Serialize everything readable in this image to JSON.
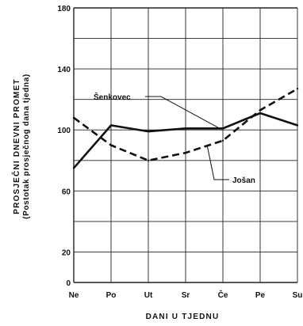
{
  "chart_data": {
    "type": "line",
    "xlabel": "DANI U TJEDNU",
    "ylabel": "PROSJEČNI DNEVNI PROMET",
    "ylabel2": "(Postotak prosječnog dana tjedna)",
    "categories": [
      "Ne",
      "Po",
      "Ut",
      "Sr",
      "Če",
      "Pe",
      "Su"
    ],
    "yticks": [
      0,
      20,
      60,
      100,
      140,
      180
    ],
    "ylim": [
      0,
      180
    ],
    "grid": true,
    "series": [
      {
        "name": "Šenkovec",
        "style": "solid",
        "color": "#111111",
        "values": [
          75,
          103,
          99,
          101,
          101,
          111,
          103
        ]
      },
      {
        "name": "Jošan",
        "style": "dashed",
        "color": "#111111",
        "values": [
          108,
          90,
          80,
          85,
          93,
          113,
          127
        ]
      }
    ]
  }
}
